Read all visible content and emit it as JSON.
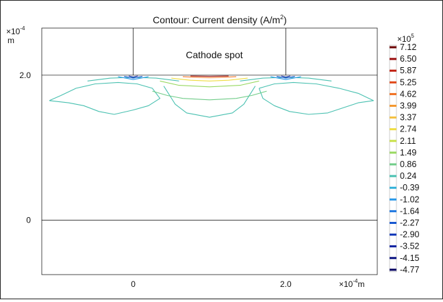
{
  "chart_data": {
    "type": "contour",
    "title": "Contour: Current density (A/m",
    "title_superscript": "2",
    "title_suffix": ")",
    "annotation": "Cathode spot",
    "x_axis": {
      "scale_label": "×10",
      "scale_exp": "-4",
      "unit": "m",
      "ticks": [
        {
          "value": 0,
          "label": "0"
        },
        {
          "value": 2.0,
          "label": "2.0"
        }
      ],
      "range": [
        -1.2,
        3.2
      ]
    },
    "y_axis": {
      "scale_label": "×10",
      "scale_exp": "-4",
      "unit": "m",
      "ticks": [
        {
          "value": 0,
          "label": "0"
        },
        {
          "value": 2.0,
          "label": "2.0"
        }
      ],
      "range": [
        -0.75,
        2.65
      ]
    },
    "colorbar": {
      "scale_label": "×10",
      "scale_exp": "5",
      "levels": [
        {
          "label": "7.12",
          "color": "#6b0000"
        },
        {
          "label": "6.50",
          "color": "#9a0c0c"
        },
        {
          "label": "5.87",
          "color": "#c02010"
        },
        {
          "label": "5.25",
          "color": "#e04818"
        },
        {
          "label": "4.62",
          "color": "#f07020"
        },
        {
          "label": "3.99",
          "color": "#f49830"
        },
        {
          "label": "3.37",
          "color": "#f4c040"
        },
        {
          "label": "2.74",
          "color": "#eedc40"
        },
        {
          "label": "2.11",
          "color": "#c8e048"
        },
        {
          "label": "1.49",
          "color": "#98d860"
        },
        {
          "label": "0.86",
          "color": "#70cc88"
        },
        {
          "label": "0.24",
          "color": "#48c0b0"
        },
        {
          "label": "-0.39",
          "color": "#30b0d8"
        },
        {
          "label": "-1.02",
          "color": "#2898e8"
        },
        {
          "label": "-1.64",
          "color": "#2078e0"
        },
        {
          "label": "-2.27",
          "color": "#1858d0"
        },
        {
          "label": "-2.90",
          "color": "#1038b8"
        },
        {
          "label": "-3.52",
          "color": "#0c20a0"
        },
        {
          "label": "-4.15",
          "color": "#081080"
        },
        {
          "label": "-4.77",
          "color": "#040060"
        }
      ]
    },
    "geometry_lines": {
      "electrode_left_x": 0,
      "electrode_right_x": 2.0,
      "electrode_top_y": 2.0,
      "electrode_bottom_y": 0
    },
    "contours": [
      {
        "level": "0.24",
        "points": [
          [
            -1.1,
            1.65
          ],
          [
            -0.95,
            1.72
          ],
          [
            -0.75,
            1.82
          ],
          [
            -0.5,
            1.88
          ],
          [
            -0.2,
            1.9
          ],
          [
            0.05,
            1.88
          ],
          [
            0.25,
            1.82
          ],
          [
            0.35,
            1.68
          ],
          [
            0.2,
            1.58
          ],
          [
            0.0,
            1.52
          ],
          [
            -0.25,
            1.46
          ],
          [
            -0.45,
            1.5
          ],
          [
            -0.65,
            1.58
          ],
          [
            -0.85,
            1.62
          ],
          [
            -1.1,
            1.65
          ]
        ]
      },
      {
        "level": "0.24",
        "points": [
          [
            0.4,
            1.85
          ],
          [
            0.55,
            1.6
          ],
          [
            0.7,
            1.48
          ],
          [
            1.0,
            1.42
          ],
          [
            1.3,
            1.48
          ],
          [
            1.45,
            1.6
          ],
          [
            1.6,
            1.85
          ]
        ]
      },
      {
        "level": "0.24",
        "points": [
          [
            1.65,
            1.82
          ],
          [
            1.85,
            1.88
          ],
          [
            2.1,
            1.9
          ],
          [
            2.4,
            1.88
          ],
          [
            2.7,
            1.82
          ],
          [
            2.95,
            1.75
          ],
          [
            3.15,
            1.65
          ],
          [
            2.95,
            1.62
          ],
          [
            2.75,
            1.55
          ],
          [
            2.55,
            1.48
          ],
          [
            2.3,
            1.46
          ],
          [
            2.05,
            1.5
          ],
          [
            1.85,
            1.58
          ],
          [
            1.7,
            1.68
          ],
          [
            1.65,
            1.82
          ]
        ]
      },
      {
        "level": "0.86",
        "points": [
          [
            0.25,
            1.78
          ],
          [
            0.45,
            1.72
          ],
          [
            0.65,
            1.68
          ],
          [
            1.0,
            1.66
          ],
          [
            1.35,
            1.68
          ],
          [
            1.55,
            1.72
          ],
          [
            1.75,
            1.78
          ]
        ]
      },
      {
        "level": "0.24",
        "points": [
          [
            -0.6,
            1.92
          ],
          [
            -0.3,
            1.96
          ],
          [
            0.0,
            1.97
          ],
          [
            0.3,
            1.96
          ],
          [
            0.6,
            1.92
          ]
        ]
      },
      {
        "level": "0.24",
        "points": [
          [
            1.4,
            1.92
          ],
          [
            1.7,
            1.96
          ],
          [
            2.0,
            1.97
          ],
          [
            2.3,
            1.96
          ],
          [
            2.6,
            1.92
          ]
        ]
      },
      {
        "level": "1.49",
        "points": [
          [
            0.35,
            1.92
          ],
          [
            0.6,
            1.86
          ],
          [
            1.0,
            1.84
          ],
          [
            1.4,
            1.86
          ],
          [
            1.65,
            1.92
          ]
        ]
      },
      {
        "level": "2.74",
        "points": [
          [
            0.5,
            1.96
          ],
          [
            0.75,
            1.93
          ],
          [
            1.0,
            1.92
          ],
          [
            1.25,
            1.93
          ],
          [
            1.5,
            1.96
          ]
        ]
      },
      {
        "level": "4.62",
        "points": [
          [
            0.65,
            1.98
          ],
          [
            1.0,
            1.965
          ],
          [
            1.35,
            1.98
          ]
        ]
      },
      {
        "level": "6.50",
        "points": [
          [
            0.75,
            1.99
          ],
          [
            1.0,
            1.985
          ],
          [
            1.25,
            1.99
          ]
        ]
      },
      {
        "level": "-1.02",
        "points": [
          [
            -0.2,
            1.98
          ],
          [
            0.0,
            1.94
          ],
          [
            0.2,
            1.98
          ]
        ]
      },
      {
        "level": "-2.27",
        "points": [
          [
            -0.12,
            1.985
          ],
          [
            0.0,
            1.96
          ],
          [
            0.12,
            1.985
          ]
        ]
      },
      {
        "level": "-3.52",
        "points": [
          [
            -0.06,
            1.99
          ],
          [
            0.0,
            1.975
          ],
          [
            0.06,
            1.99
          ]
        ]
      },
      {
        "level": "-1.02",
        "points": [
          [
            1.8,
            1.98
          ],
          [
            2.0,
            1.94
          ],
          [
            2.2,
            1.98
          ]
        ]
      },
      {
        "level": "-2.27",
        "points": [
          [
            1.88,
            1.985
          ],
          [
            2.0,
            1.96
          ],
          [
            2.12,
            1.985
          ]
        ]
      },
      {
        "level": "-3.52",
        "points": [
          [
            1.94,
            1.99
          ],
          [
            2.0,
            1.975
          ],
          [
            2.06,
            1.99
          ]
        ]
      }
    ]
  }
}
